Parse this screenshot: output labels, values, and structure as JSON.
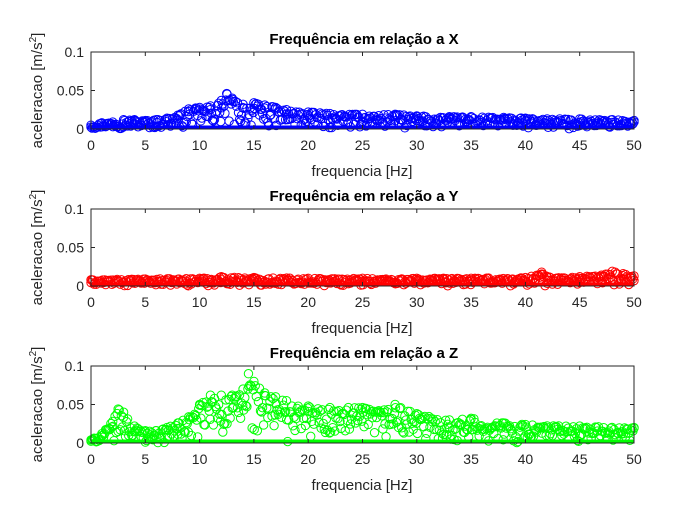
{
  "chart_data": [
    {
      "type": "scatter",
      "title": "Frequência em relação a X",
      "xlabel": "frequencia [Hz]",
      "ylabel": "aceleracao [m/s",
      "ylabel_sup": "2",
      "ylabel_close": "]",
      "xlim": [
        0,
        50
      ],
      "ylim": [
        0,
        0.1
      ],
      "xticks": [
        "0",
        "5",
        "10",
        "15",
        "20",
        "25",
        "30",
        "35",
        "40",
        "45",
        "50"
      ],
      "yticks": [
        "0",
        "0.05",
        "0.1"
      ],
      "color": "#0000ff",
      "marker": "circle",
      "envelope": {
        "x": [
          0,
          1,
          2,
          3,
          4,
          5,
          6,
          7,
          8,
          9,
          10,
          11,
          12,
          12.5,
          13,
          14,
          15,
          16,
          17,
          18,
          20,
          22,
          25,
          28,
          30,
          33,
          35,
          38,
          40,
          42,
          45,
          48,
          50
        ],
        "y": [
          0.005,
          0.008,
          0.009,
          0.012,
          0.012,
          0.011,
          0.012,
          0.014,
          0.018,
          0.026,
          0.028,
          0.03,
          0.037,
          0.046,
          0.04,
          0.032,
          0.034,
          0.031,
          0.028,
          0.025,
          0.022,
          0.02,
          0.019,
          0.019,
          0.017,
          0.016,
          0.016,
          0.015,
          0.014,
          0.013,
          0.013,
          0.012,
          0.011
        ]
      }
    },
    {
      "type": "scatter",
      "title": "Frequência em relação a Y",
      "xlabel": "frequencia [Hz]",
      "ylabel": "aceleracao [m/s",
      "ylabel_sup": "2",
      "ylabel_close": "]",
      "xlim": [
        0,
        50
      ],
      "ylim": [
        0,
        0.1
      ],
      "xticks": [
        "0",
        "5",
        "10",
        "15",
        "20",
        "25",
        "30",
        "35",
        "40",
        "45",
        "50"
      ],
      "yticks": [
        "0",
        "0.05",
        "0.1"
      ],
      "color": "#ff0000",
      "marker": "circle",
      "envelope": {
        "x": [
          0,
          5,
          10,
          12,
          15,
          20,
          25,
          30,
          35,
          40,
          41.5,
          42,
          45,
          47,
          48,
          49,
          50
        ],
        "y": [
          0.008,
          0.009,
          0.01,
          0.012,
          0.011,
          0.01,
          0.01,
          0.01,
          0.01,
          0.011,
          0.018,
          0.012,
          0.012,
          0.014,
          0.019,
          0.016,
          0.013
        ]
      }
    },
    {
      "type": "scatter",
      "title": "Frequência em relação a Z",
      "xlabel": "frequencia [Hz]",
      "ylabel": "aceleracao [m/s",
      "ylabel_sup": "2",
      "ylabel_close": "]",
      "xlim": [
        0,
        50
      ],
      "ylim": [
        0,
        0.1
      ],
      "xticks": [
        "0",
        "5",
        "10",
        "15",
        "20",
        "25",
        "30",
        "35",
        "40",
        "45",
        "50"
      ],
      "yticks": [
        "0",
        "0.05",
        "0.1"
      ],
      "color": "#00ff00",
      "marker": "circle",
      "envelope": {
        "x": [
          0,
          1,
          2,
          2.5,
          3,
          4,
          5,
          6,
          7,
          8,
          9,
          10,
          11,
          12,
          13,
          14,
          14.5,
          15,
          16,
          17,
          18,
          20,
          22,
          25,
          27,
          28,
          30,
          33,
          35,
          38,
          40,
          45,
          50
        ],
        "y": [
          0.004,
          0.012,
          0.028,
          0.044,
          0.04,
          0.022,
          0.016,
          0.016,
          0.02,
          0.026,
          0.034,
          0.05,
          0.062,
          0.062,
          0.062,
          0.07,
          0.09,
          0.08,
          0.065,
          0.06,
          0.055,
          0.048,
          0.046,
          0.046,
          0.043,
          0.05,
          0.038,
          0.03,
          0.032,
          0.026,
          0.024,
          0.022,
          0.02
        ]
      }
    }
  ]
}
